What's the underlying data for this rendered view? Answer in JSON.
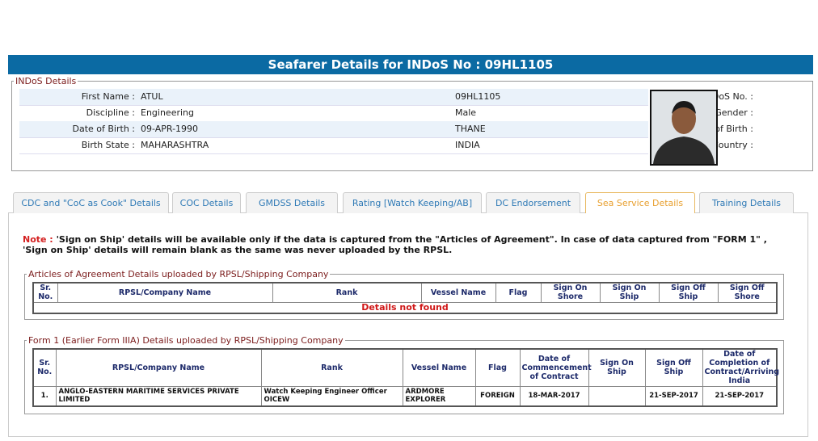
{
  "header": {
    "title": "Seafarer Details for INDoS No : 09HL1105"
  },
  "indos_details": {
    "legend": "INDoS Details",
    "rows": [
      [
        {
          "label": "First Name :",
          "value": "ATUL"
        },
        {
          "label": "INDoS No. :",
          "value": "09HL1105"
        }
      ],
      [
        {
          "label": "Discipline :",
          "value": "Engineering"
        },
        {
          "label": "Gender :",
          "value": "Male"
        }
      ],
      [
        {
          "label": "Date of Birth :",
          "value": "09-APR-1990"
        },
        {
          "label": "Place of Birth :",
          "value": "THANE"
        }
      ],
      [
        {
          "label": "Birth State :",
          "value": "MAHARASHTRA"
        },
        {
          "label": "Birth Country :",
          "value": "INDIA"
        }
      ]
    ]
  },
  "tabs": [
    "CDC and \"CoC as Cook\" Details",
    "COC Details",
    "GMDSS Details",
    "Rating [Watch Keeping/AB]",
    "DC Endorsement",
    "Sea Service Details",
    "Training Details"
  ],
  "note": {
    "label": "Note :",
    "text": "'Sign on Ship' details will be available only if the data is captured from the \"Articles of Agreement\". In case of data captured from \"FORM 1\" , 'Sign on Ship' details will remain blank as the same was never uploaded by the RPSL."
  },
  "articles": {
    "legend": "Articles of Agreement Details uploaded by RPSL/Shipping Company",
    "columns": [
      "Sr. No.",
      "RPSL/Company Name",
      "Rank",
      "Vessel Name",
      "Flag",
      "Sign On Shore",
      "Sign On Ship",
      "Sign Off Ship",
      "Sign Off Shore"
    ],
    "empty_message": "Details not found"
  },
  "form1": {
    "legend": "Form 1 (Earlier Form IIIA) Details uploaded by RPSL/Shipping Company",
    "columns": [
      "Sr. No.",
      "RPSL/Company Name",
      "Rank",
      "Vessel Name",
      "Flag",
      "Date of Commencement of Contract",
      "Sign On Ship",
      "Sign Off Ship",
      "Date of Completion of Contract/Arriving India"
    ],
    "rows": [
      [
        "1.",
        "ANGLO-EASTERN MARITIME SERVICES PRIVATE LIMITED",
        "Watch Keeping Engineer Officer OICEW",
        "ARDMORE EXPLORER",
        "FOREIGN",
        "18-MAR-2017",
        "",
        "21-SEP-2017",
        "21-SEP-2017"
      ]
    ]
  }
}
